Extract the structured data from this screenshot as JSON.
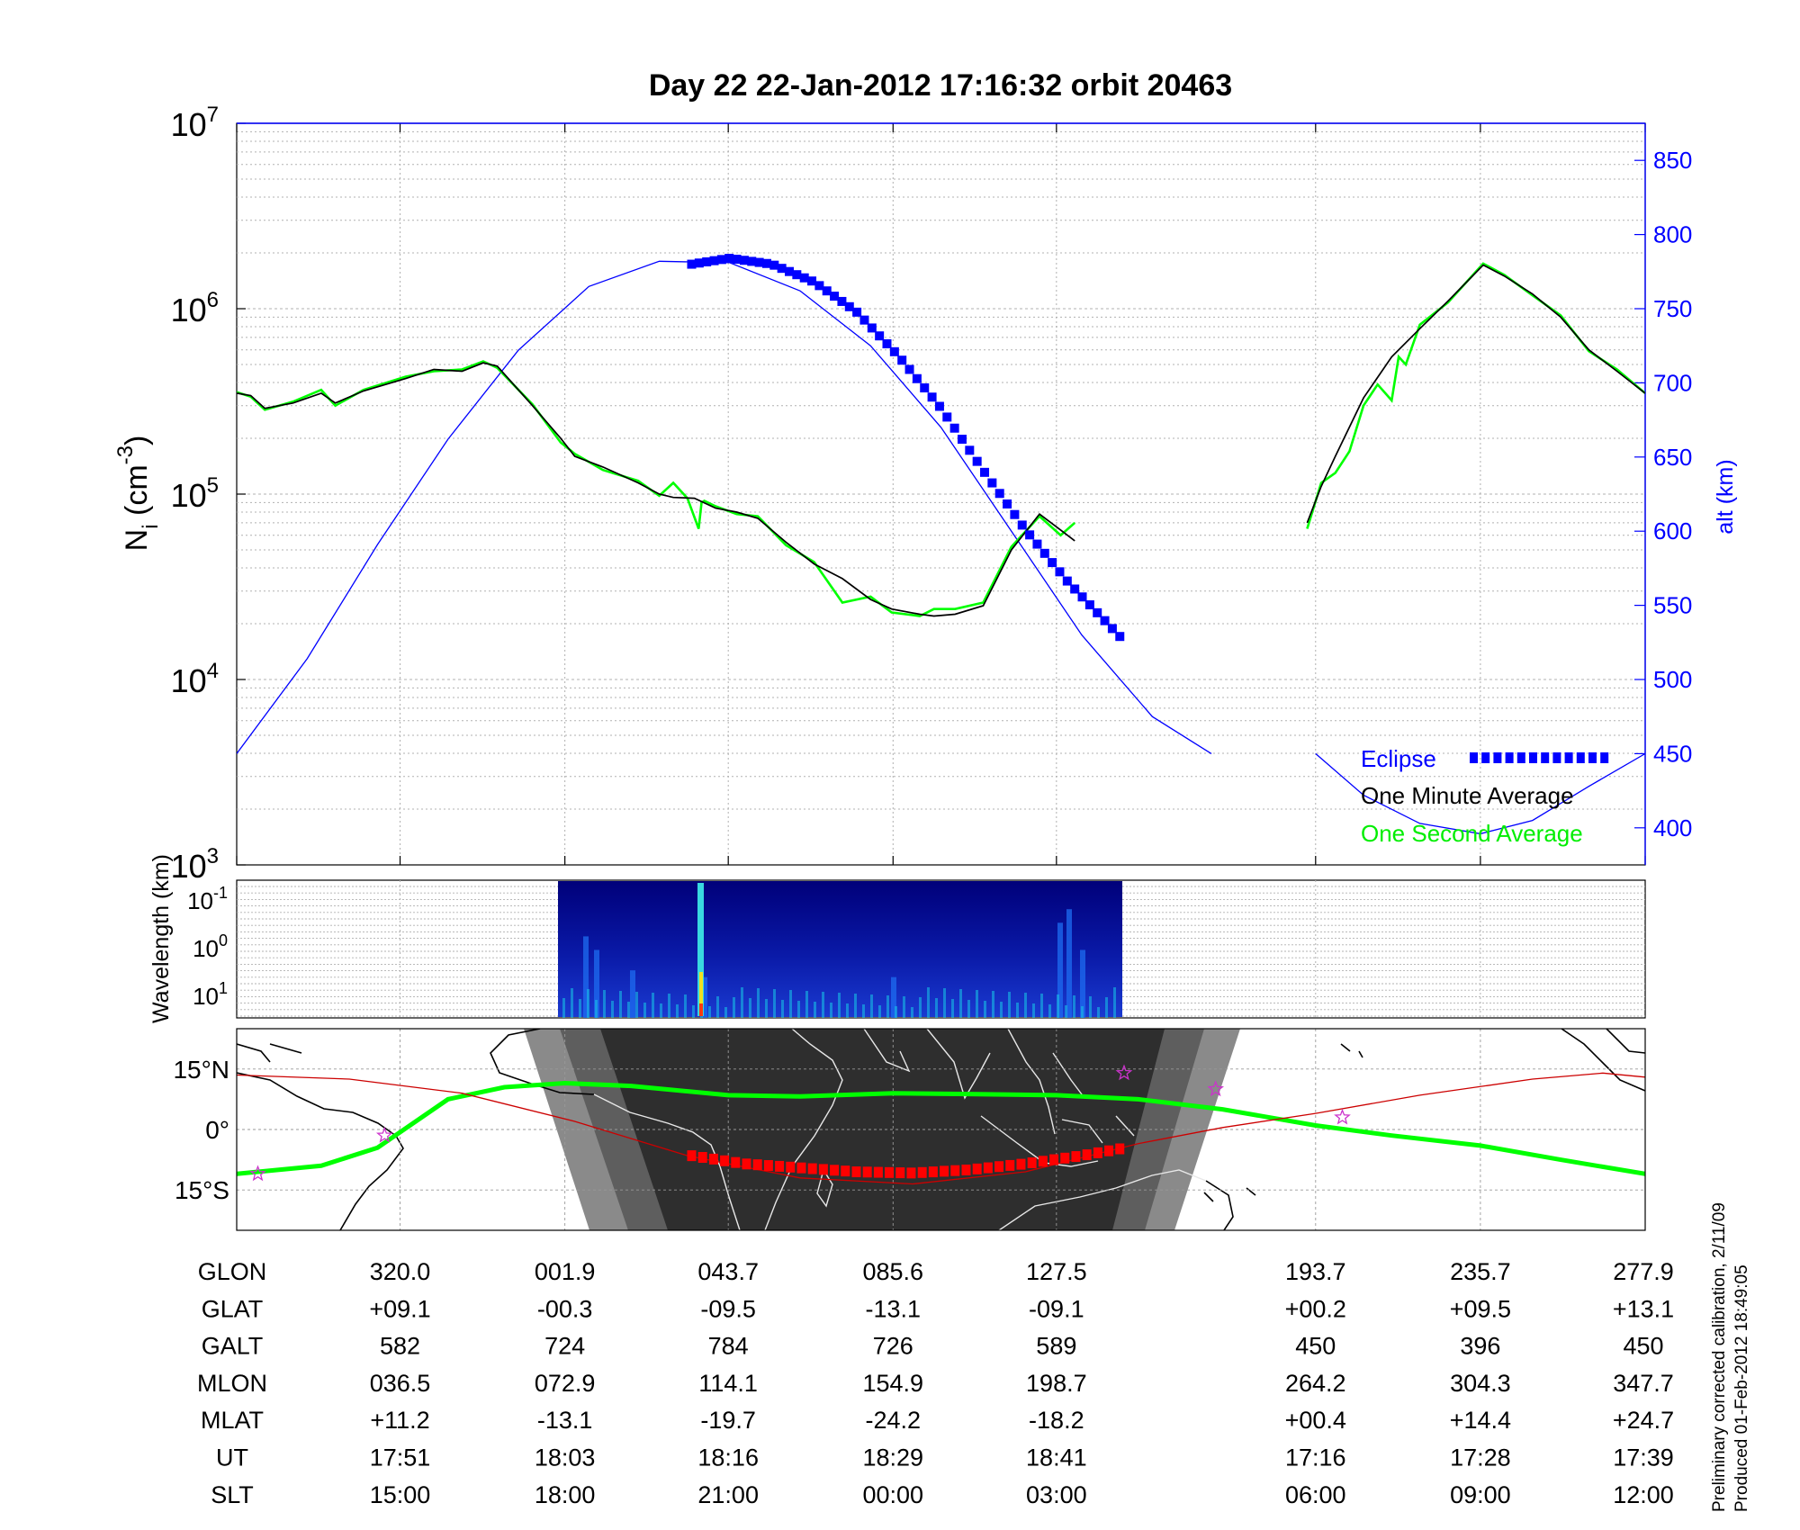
{
  "title": "Day 22  22-Jan-2012 17:16:32   orbit 20463",
  "colors": {
    "background": "#ffffff",
    "grid": "#b0b0b0",
    "axis": "#000000",
    "altitude": "#0000ff",
    "eclipse": "#0000ff",
    "one_minute": "#000000",
    "one_second": "#00ff00",
    "track": "#00ff00",
    "track_eclipse": "#ff0000",
    "magnetic_equator": "#cc0000",
    "apex_star": "#cc33cc",
    "night": "#2a2a2a",
    "twilight": "#555555",
    "twilight_outer": "#808080",
    "spectrogram_bg": "#00008b"
  },
  "chart_data": [
    {
      "id": "density",
      "type": "line",
      "ylabel": "N_i (cm^-3)",
      "y2label": "alt (km)",
      "y_scale": "log",
      "ylim": [
        1000,
        10000000
      ],
      "y_ticks": [
        1000,
        10000,
        100000,
        1000000,
        10000000
      ],
      "y2lim": [
        375,
        875
      ],
      "y2_ticks": [
        400,
        450,
        500,
        550,
        600,
        650,
        700,
        750,
        800,
        850
      ],
      "xlim": [
        0,
        100
      ],
      "x_ticks": [
        0,
        11.6,
        23.3,
        34.9,
        46.6,
        58.2,
        76.6,
        88.3,
        100
      ],
      "grid": true,
      "legend": [
        "Eclipse",
        "One Minute Average",
        "One Second Average"
      ],
      "legend_position": "bottom-right",
      "series": [
        {
          "name": "One Minute Average",
          "x": [
            0,
            1,
            2,
            4,
            6,
            7,
            9,
            12,
            14,
            16,
            17.5,
            18.5,
            21,
            23,
            24,
            26,
            28.5,
            30,
            31,
            32.5,
            34,
            35.5,
            37,
            39,
            41,
            43,
            45,
            46.5,
            48.5,
            49.5,
            51,
            53,
            55,
            57,
            58.5,
            59.5
          ],
          "y": [
            350000,
            340000,
            290000,
            310000,
            350000,
            310000,
            360000,
            420000,
            470000,
            460000,
            510000,
            490000,
            300000,
            200000,
            160000,
            140000,
            115000,
            100000,
            96000,
            95000,
            84000,
            80000,
            74000,
            55000,
            42000,
            35000,
            27000,
            24000,
            22500,
            22000,
            22500,
            25000,
            50000,
            78000,
            64000,
            56000
          ]
        },
        {
          "name": "One Minute Average",
          "x": [
            76,
            77,
            78,
            80,
            82,
            84,
            86,
            88.5,
            90,
            92,
            94,
            96,
            98,
            100
          ],
          "y": [
            70000,
            110000,
            160000,
            330000,
            550000,
            780000,
            1100000,
            1720000,
            1500000,
            1200000,
            900000,
            600000,
            460000,
            350000
          ]
        },
        {
          "name": "One Second Average",
          "x": [
            0,
            1,
            2,
            4,
            6,
            7,
            9,
            12,
            14,
            16,
            17.5,
            18.5,
            21,
            23,
            24,
            26,
            28.5,
            30,
            31,
            32,
            32.8,
            33,
            33.2,
            34,
            35.5,
            37,
            39,
            41,
            43,
            45,
            46.5,
            48.5,
            49.5,
            51,
            53,
            55,
            57,
            58.5,
            59.5
          ],
          "y": [
            355000,
            335000,
            285000,
            315000,
            365000,
            300000,
            365000,
            430000,
            460000,
            470000,
            520000,
            480000,
            305000,
            190000,
            165000,
            135000,
            118000,
            98000,
            115000,
            95000,
            65000,
            90000,
            92000,
            86000,
            78000,
            76000,
            53000,
            43000,
            26000,
            28000,
            23000,
            22000,
            24000,
            24000,
            26000,
            52000,
            76000,
            60000,
            70000
          ]
        },
        {
          "name": "One Second Average",
          "x": [
            76,
            77,
            78,
            79,
            80,
            81,
            82,
            82.5,
            83,
            84,
            86,
            88.5,
            90,
            92,
            94,
            96,
            98,
            100
          ],
          "y": [
            65000,
            115000,
            130000,
            170000,
            300000,
            390000,
            320000,
            550000,
            500000,
            820000,
            1080000,
            1750000,
            1520000,
            1180000,
            920000,
            590000,
            470000,
            350000
          ]
        },
        {
          "name": "alt (km)",
          "axis": "right",
          "x": [
            0,
            5,
            10,
            15,
            20,
            25,
            30,
            35,
            40,
            45,
            50,
            55,
            60,
            65,
            69.2
          ],
          "y": [
            450,
            514,
            591,
            662,
            722,
            765,
            782,
            781,
            762,
            725,
            670,
            600,
            530,
            475,
            450
          ]
        },
        {
          "name": "alt (km)",
          "axis": "right",
          "x": [
            76.6,
            80,
            84,
            88.3,
            92,
            96,
            100
          ],
          "y": [
            450,
            422,
            403,
            396,
            405,
            428,
            450
          ]
        },
        {
          "name": "Eclipse",
          "axis": "right",
          "x": [
            32.3,
            35,
            38,
            41,
            44,
            47,
            50,
            53,
            56,
            59,
            62.7
          ],
          "y": [
            780,
            784,
            780,
            768,
            748,
            718,
            683,
            641,
            601,
            566,
            529
          ]
        }
      ]
    },
    {
      "id": "wavelength",
      "type": "heatmap",
      "ylabel": "Wavelength (km)",
      "y_ticks": [
        "10-1",
        "100",
        "101"
      ],
      "x_range": [
        22.9,
        63
      ],
      "grid": true
    },
    {
      "id": "track",
      "type": "map",
      "y_ticks": [
        "15°N",
        "0°",
        "15°S"
      ],
      "ylim": [
        -25,
        25
      ],
      "xlim": [
        0,
        100
      ],
      "series": [
        {
          "name": "track",
          "x": [
            0,
            6,
            10,
            15,
            19,
            23.3,
            28,
            34.9,
            40,
            46.6,
            52,
            58.2,
            64,
            70,
            76.6,
            82,
            88.3,
            94,
            100
          ],
          "y": [
            -11,
            -9,
            -4.5,
            7.5,
            10.5,
            11.5,
            10.8,
            8.5,
            8.2,
            9,
            8.8,
            8.5,
            7.5,
            5,
            1,
            -1.5,
            -4,
            -7.5,
            -11
          ]
        },
        {
          "name": "magnetic_equator",
          "x": [
            0,
            8,
            16,
            24,
            32,
            40,
            48,
            56,
            64,
            70,
            76.6,
            84,
            92,
            97,
            100
          ],
          "y": [
            13.5,
            12.5,
            9,
            2,
            -6.5,
            -12,
            -13.5,
            -10.5,
            -3.5,
            0.5,
            4,
            8.5,
            12.5,
            14,
            13
          ]
        },
        {
          "name": "eclipse_track",
          "x": [
            32.3,
            36,
            40,
            44,
            48,
            52,
            56,
            60,
            62.7
          ],
          "y": [
            -6.5,
            -8.5,
            -9.5,
            -10.5,
            -10.8,
            -10,
            -8.5,
            -6.5,
            -4.8
          ]
        },
        {
          "name": "apex_stars",
          "x": [
            1.5,
            10.5,
            63,
            69.5,
            78.5
          ],
          "y": [
            -11,
            -1.5,
            14,
            10,
            3
          ]
        }
      ]
    }
  ],
  "y_tick_labels": {
    "density": [
      {
        "base": "10",
        "exp": "3"
      },
      {
        "base": "10",
        "exp": "4"
      },
      {
        "base": "10",
        "exp": "5"
      },
      {
        "base": "10",
        "exp": "6"
      },
      {
        "base": "10",
        "exp": "7"
      }
    ],
    "altitude": [
      "400",
      "450",
      "500",
      "550",
      "600",
      "650",
      "700",
      "750",
      "800",
      "850"
    ],
    "wavelength": [
      {
        "base": "10",
        "exp": "-1"
      },
      {
        "base": "10",
        "exp": "0"
      },
      {
        "base": "10",
        "exp": "1"
      }
    ],
    "latitude": [
      "15°N",
      "0°",
      "15°S"
    ]
  },
  "axis_labels": {
    "density_y": {
      "main": "N",
      "sub": "i",
      "unit_open": " (cm",
      "unit_exp": "-3",
      "unit_close": ")"
    },
    "altitude_y": "alt (km)",
    "wavelength_y": "Wavelength (km)"
  },
  "legend": {
    "eclipse": "Eclipse",
    "one_minute": "One Minute Average",
    "one_second": "One Second Average"
  },
  "table": {
    "row_labels": [
      "GLON",
      "GLAT",
      "GALT",
      "MLON",
      "MLAT",
      "UT",
      "SLT"
    ],
    "columns": [
      [
        "320.0",
        "+09.1",
        "582",
        "036.5",
        "+11.2",
        "17:51",
        "15:00"
      ],
      [
        "001.9",
        "-00.3",
        "724",
        "072.9",
        "-13.1",
        "18:03",
        "18:00"
      ],
      [
        "043.7",
        "-09.5",
        "784",
        "114.1",
        "-19.7",
        "18:16",
        "21:00"
      ],
      [
        "085.6",
        "-13.1",
        "726",
        "154.9",
        "-24.2",
        "18:29",
        "00:00"
      ],
      [
        "127.5",
        "-09.1",
        "589",
        "198.7",
        "-18.2",
        "18:41",
        "03:00"
      ],
      [
        "193.7",
        "+00.2",
        "450",
        "264.2",
        "+00.4",
        "17:16",
        "06:00"
      ],
      [
        "235.7",
        "+09.5",
        "396",
        "304.3",
        "+14.4",
        "17:28",
        "09:00"
      ],
      [
        "277.9",
        "+13.1",
        "450",
        "347.7",
        "+24.7",
        "17:39",
        "12:00"
      ]
    ]
  },
  "footer": {
    "calibration": "Preliminary corrected calibration, 2/11/09",
    "produced": "Produced 01-Feb-2012 18:49:05"
  }
}
